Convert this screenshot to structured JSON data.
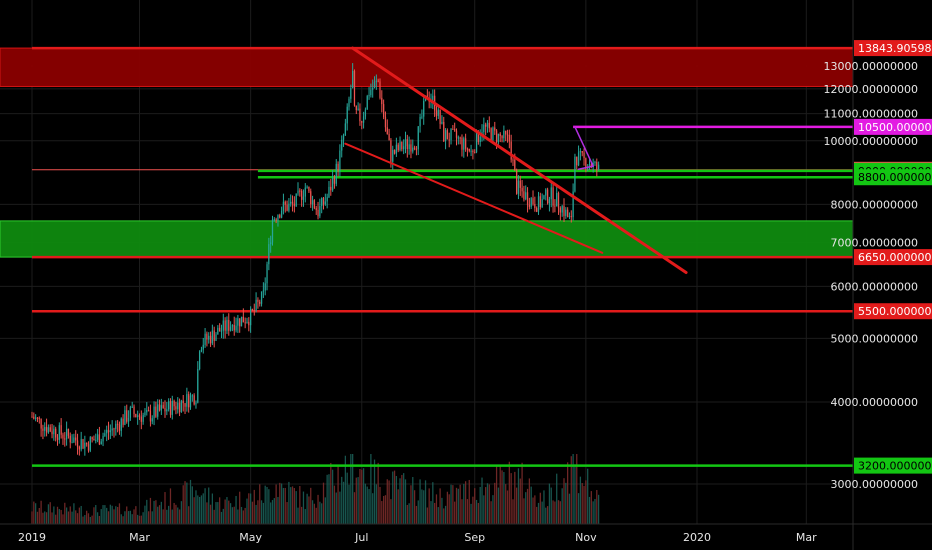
{
  "chart_data": {
    "type": "candlestick",
    "title": "",
    "xlabel": "",
    "ylabel": "",
    "y_scale": "log",
    "ylim": [
      2700,
      14600
    ],
    "xlim": [
      "2019-01-01",
      "2020-04-12"
    ],
    "grid": true,
    "x_tick_labels": [
      {
        "label": "2019",
        "date": "2019-01-01"
      },
      {
        "label": "Mar",
        "date": "2019-03-01"
      },
      {
        "label": "May",
        "date": "2019-05-01"
      },
      {
        "label": "Jul",
        "date": "2019-07-01"
      },
      {
        "label": "Sep",
        "date": "2019-09-01"
      },
      {
        "label": "Nov",
        "date": "2019-11-01"
      },
      {
        "label": "2020",
        "date": "2020-01-01"
      },
      {
        "label": "Mar",
        "date": "2020-03-01"
      }
    ],
    "y_tick_labels": [
      {
        "value": 3000,
        "label": "3000.00000000"
      },
      {
        "value": 4000,
        "label": "4000.00000000"
      },
      {
        "value": 5000,
        "label": "5000.00000000"
      },
      {
        "value": 6000,
        "label": "6000.00000000"
      },
      {
        "value": 7000,
        "label": "7000.00000000"
      },
      {
        "value": 8000,
        "label": "8000.00000000"
      },
      {
        "value": 10000,
        "label": "10000.00000000"
      },
      {
        "value": 11000,
        "label": "11000.00000000"
      },
      {
        "value": 12000,
        "label": "12000.00000000"
      },
      {
        "value": 13000,
        "label": "13000.00000000"
      }
    ],
    "price_path": [
      [
        "2019-01-01",
        3800
      ],
      [
        "2019-01-10",
        3650
      ],
      [
        "2019-01-20",
        3550
      ],
      [
        "2019-01-31",
        3450
      ],
      [
        "2019-02-08",
        3550
      ],
      [
        "2019-02-15",
        3650
      ],
      [
        "2019-02-24",
        3850
      ],
      [
        "2019-03-05",
        3800
      ],
      [
        "2019-03-15",
        3900
      ],
      [
        "2019-03-25",
        4000
      ],
      [
        "2019-04-01",
        4100
      ],
      [
        "2019-04-03",
        4900
      ],
      [
        "2019-04-12",
        5100
      ],
      [
        "2019-04-22",
        5300
      ],
      [
        "2019-05-01",
        5400
      ],
      [
        "2019-05-08",
        5800
      ],
      [
        "2019-05-13",
        7600
      ],
      [
        "2019-05-18",
        7900
      ],
      [
        "2019-05-25",
        8000
      ],
      [
        "2019-05-31",
        8500
      ],
      [
        "2019-06-07",
        7800
      ],
      [
        "2019-06-12",
        8200
      ],
      [
        "2019-06-18",
        9200
      ],
      [
        "2019-06-22",
        10500
      ],
      [
        "2019-06-26",
        12600
      ],
      [
        "2019-06-27",
        11000
      ],
      [
        "2019-07-01",
        10800
      ],
      [
        "2019-07-05",
        11900
      ],
      [
        "2019-07-10",
        12300
      ],
      [
        "2019-07-14",
        10500
      ],
      [
        "2019-07-17",
        9500
      ],
      [
        "2019-07-23",
        9800
      ],
      [
        "2019-07-31",
        10000
      ],
      [
        "2019-08-06",
        11800
      ],
      [
        "2019-08-10",
        11400
      ],
      [
        "2019-08-15",
        10200
      ],
      [
        "2019-08-22",
        10100
      ],
      [
        "2019-08-30",
        9600
      ],
      [
        "2019-09-05",
        10500
      ],
      [
        "2019-09-12",
        10200
      ],
      [
        "2019-09-20",
        10000
      ],
      [
        "2019-09-24",
        8500
      ],
      [
        "2019-09-30",
        8200
      ],
      [
        "2019-10-06",
        8000
      ],
      [
        "2019-10-12",
        8300
      ],
      [
        "2019-10-18",
        8000
      ],
      [
        "2019-10-24",
        7500
      ],
      [
        "2019-10-26",
        9500
      ],
      [
        "2019-10-28",
        9400
      ],
      [
        "2019-11-03",
        9250
      ],
      [
        "2019-11-08",
        9032
      ]
    ],
    "volume_path": [
      [
        "2019-01-01",
        0.25
      ],
      [
        "2019-02-01",
        0.2
      ],
      [
        "2019-03-01",
        0.22
      ],
      [
        "2019-04-02",
        0.5
      ],
      [
        "2019-04-15",
        0.3
      ],
      [
        "2019-05-10",
        0.45
      ],
      [
        "2019-05-15",
        0.6
      ],
      [
        "2019-06-01",
        0.35
      ],
      [
        "2019-06-26",
        0.9
      ],
      [
        "2019-07-15",
        0.6
      ],
      [
        "2019-08-15",
        0.4
      ],
      [
        "2019-09-24",
        0.7
      ],
      [
        "2019-10-10",
        0.35
      ],
      [
        "2019-10-26",
        0.95
      ],
      [
        "2019-11-08",
        0.3
      ]
    ],
    "zones": [
      {
        "name": "resistance-zone",
        "from": 12100,
        "to": 13843.90598161,
        "fill": "#8b0000",
        "border": "#d41414"
      },
      {
        "name": "support-zone",
        "from": 6650,
        "to": 7550,
        "fill": "#0f8a0f",
        "border": "#2ecc2e"
      }
    ],
    "horizontal_levels": [
      {
        "value": 13843.90598161,
        "label": "13843.90598161",
        "color": "#e21b1b",
        "start": "2019-01-01"
      },
      {
        "value": 10500,
        "label": "10500.00000000",
        "color": "#e21be2",
        "start": "2019-10-25"
      },
      {
        "value": 9032.155,
        "label": "9032.15500000",
        "color": "#ef5350",
        "start": "2019-01-01"
      },
      {
        "value": 9000,
        "label": "9000.00000000",
        "color": "#13c613",
        "start": "2019-05-05"
      },
      {
        "value": 8800,
        "label": "8800.00000000",
        "color": "#13c613",
        "start": "2019-05-05"
      },
      {
        "value": 6650,
        "label": "6650.00000000",
        "color": "#e21b1b",
        "start": "2019-01-01"
      },
      {
        "value": 5500,
        "label": "5500.00000000",
        "color": "#e21b1b",
        "start": "2019-01-01"
      },
      {
        "value": 3200,
        "label": "3200.00000000",
        "color": "#13c613",
        "start": "2019-01-01"
      }
    ],
    "trendlines": [
      {
        "name": "descending-resistance",
        "color": "#e21b1b",
        "width": 3,
        "from": [
          "2019-06-26",
          13843.9
        ],
        "to": [
          "2019-12-26",
          6300
        ]
      },
      {
        "name": "descending-support",
        "color": "#e21b1b",
        "width": 2,
        "from": [
          "2019-06-22",
          9900
        ],
        "to": [
          "2019-11-10",
          6750
        ]
      },
      {
        "name": "pennant-upper",
        "color": "#b030e0",
        "width": 1.5,
        "from": [
          "2019-10-26",
          10500
        ],
        "to": [
          "2019-11-05",
          9150
        ]
      },
      {
        "name": "pennant-lower",
        "color": "#b030e0",
        "width": 1.5,
        "from": [
          "2019-10-28",
          9050
        ],
        "to": [
          "2019-11-05",
          9150
        ]
      }
    ]
  }
}
